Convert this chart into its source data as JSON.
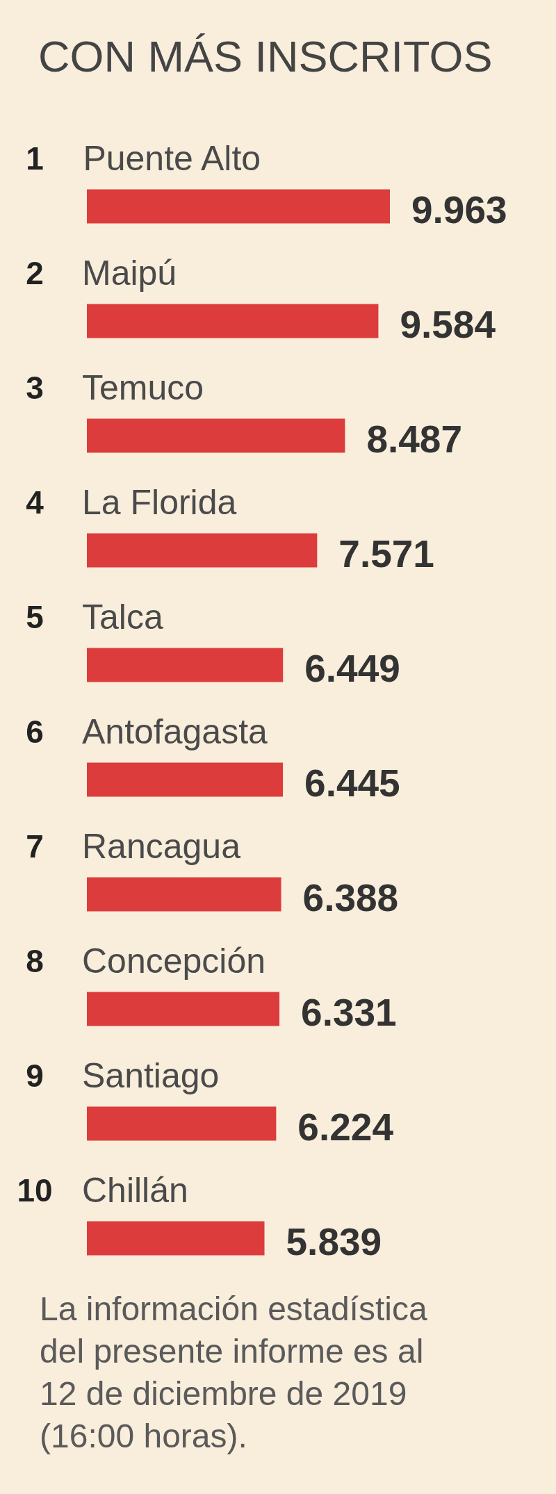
{
  "chart_data": {
    "type": "bar",
    "orientation": "horizontal",
    "title": "CON MÁS INSCRITOS",
    "categories": [
      "1 Puente Alto",
      "2 Maipú",
      "3 Temuco",
      "4 La Florida",
      "5 Talca",
      "6 Antofagasta",
      "7 Rancagua",
      "8 Concepción",
      "9 Santiago",
      "10 Chillán"
    ],
    "values": [
      9963,
      9584,
      8487,
      7571,
      6449,
      6445,
      6388,
      6331,
      6224,
      5839
    ],
    "value_labels": [
      "9.963",
      "9.584",
      "8.487",
      "7.571",
      "6.449",
      "6.445",
      "6.388",
      "6.331",
      "6.224",
      "5.839"
    ],
    "color": "#dc3c3c",
    "annotations": [
      "La información estadística del presente informe es al 12 de diciembre de 2019 (16:00 horas)."
    ]
  }
}
